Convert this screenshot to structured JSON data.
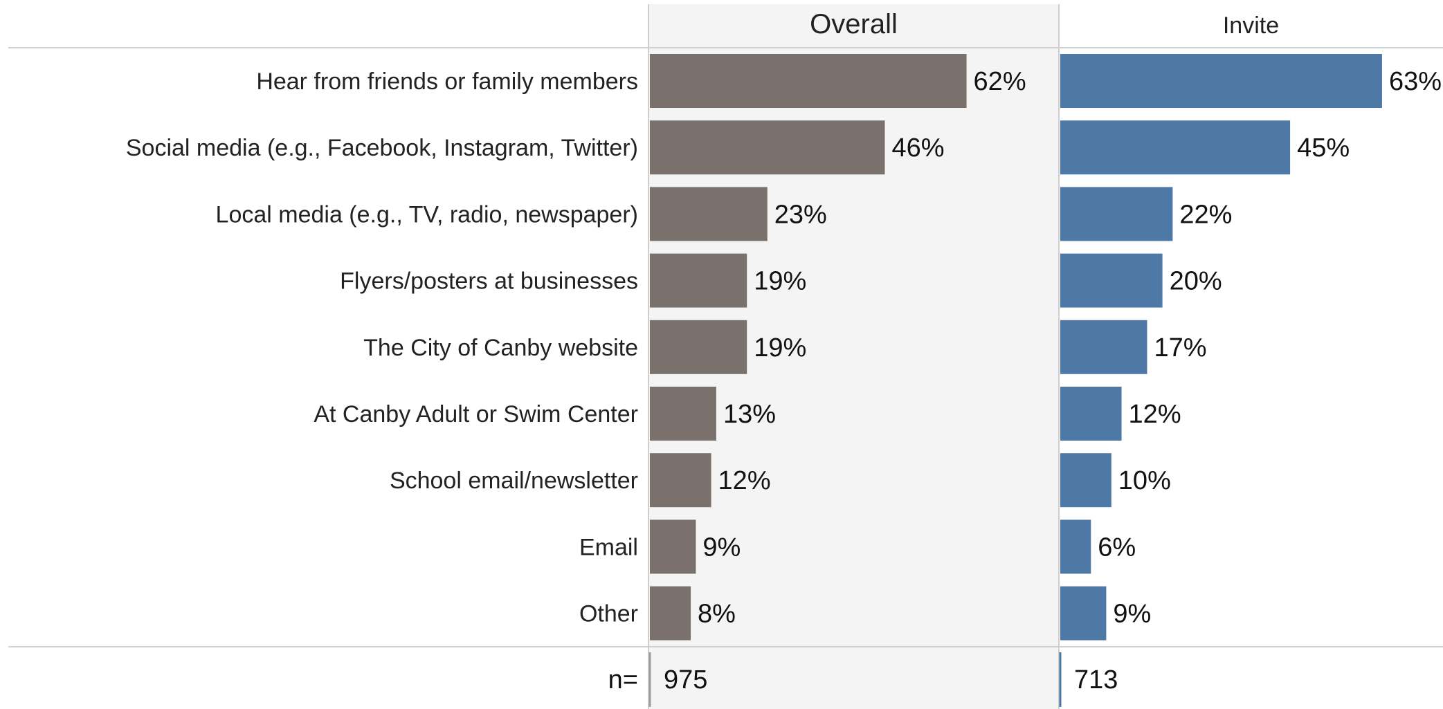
{
  "chart_data": {
    "type": "bar",
    "orientation": "horizontal",
    "categories": [
      "Hear from friends or family members",
      "Social media (e.g., Facebook, Instagram, Twitter)",
      "Local media (e.g., TV, radio, newspaper)",
      "Flyers/posters at businesses",
      "The City of Canby website",
      "At Canby Adult or Swim Center",
      "School email/newsletter",
      "Email",
      "Other"
    ],
    "series": [
      {
        "name": "Overall",
        "values": [
          62,
          46,
          23,
          19,
          19,
          13,
          12,
          9,
          8
        ],
        "labels": [
          "62%",
          "46%",
          "23%",
          "19%",
          "19%",
          "13%",
          "12%",
          "9%",
          "8%"
        ],
        "color": "#7a706c",
        "n": "975"
      },
      {
        "name": "Invite",
        "values": [
          63,
          45,
          22,
          20,
          17,
          12,
          10,
          6,
          9
        ],
        "labels": [
          "63%",
          "45%",
          "22%",
          "20%",
          "17%",
          "12%",
          "10%",
          "6%",
          "9%"
        ],
        "color": "#4e79a7",
        "n": "713"
      }
    ],
    "n_label": "n=",
    "unit": "%",
    "xlim": [
      0,
      80
    ],
    "overall_panel_background": "#f4f4f4",
    "grid": false,
    "legend": "none"
  }
}
